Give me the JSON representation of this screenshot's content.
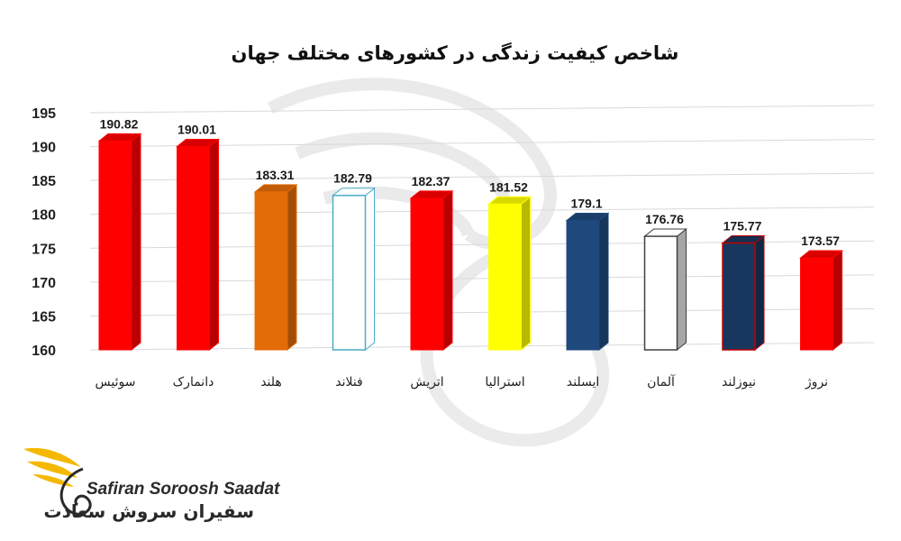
{
  "chart_data": {
    "type": "bar",
    "title": "شاخص کیفیت زندگی در کشورهای مختلف جهان",
    "categories": [
      "سوئیس",
      "دانمارک",
      "هلند",
      "فنلاند",
      "اتریش",
      "استرالیا",
      "ایسلند",
      "آلمان",
      "نیوزلند",
      "نروژ"
    ],
    "values": [
      190.82,
      190.01,
      183.31,
      182.79,
      182.37,
      181.52,
      179.1,
      176.76,
      175.77,
      173.57
    ],
    "value_labels": [
      "190.82",
      "190.01",
      "183.31",
      "182.79",
      "182.37",
      "181.52",
      "179.1",
      "176.76",
      "175.77",
      "173.57"
    ],
    "ylim": [
      160,
      195
    ],
    "yticks": [
      160,
      165,
      170,
      175,
      180,
      185,
      190,
      195
    ],
    "grid": true,
    "bar_colors": [
      "#ff0000",
      "#ff0000",
      "#e36c09",
      "#ffffff",
      "#ff0000",
      "#ffff00",
      "#1f497d",
      "#ffffff",
      "#17375e",
      "#ff0000"
    ],
    "bar_outline_colors": [
      "#ff0000",
      "#ff0000",
      "#e36c09",
      "#4bacc6",
      "#ff0000",
      "#ffff00",
      "#1f497d",
      "#404040",
      "#c00000",
      "#ff0000"
    ]
  },
  "logo": {
    "name_en": "Safiran Soroosh Saadat",
    "name_fa": "سفیران سروش سعادت"
  },
  "colors": {
    "grid": "#d9d9d9",
    "logo_gold": "#f5b800"
  }
}
